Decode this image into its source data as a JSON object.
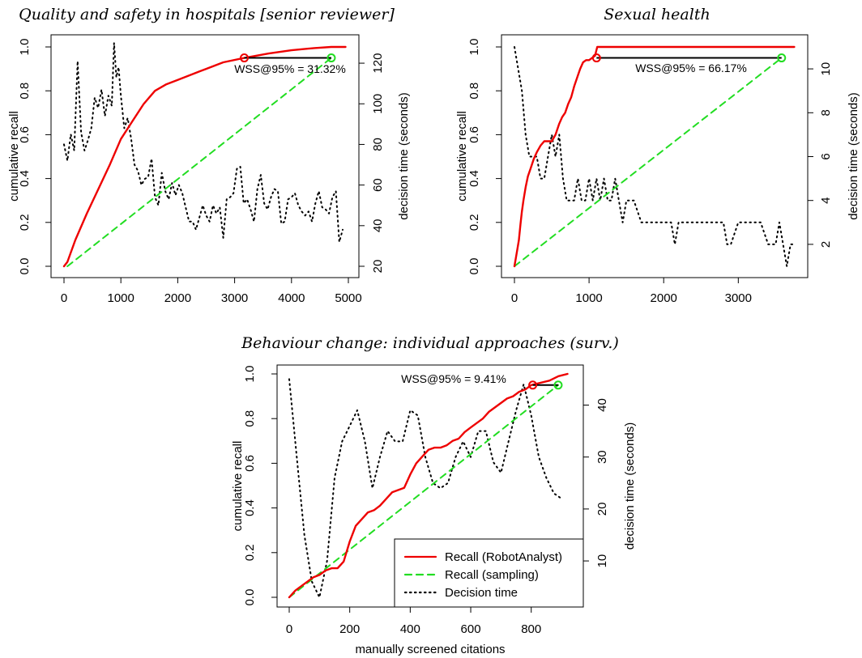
{
  "figure": {
    "legend": {
      "placement": "bottom-right of third panel",
      "entries": [
        {
          "label": "Recall (RobotAnalyst)",
          "color": "#ee0000",
          "style": "solid"
        },
        {
          "label": "Recall (sampling)",
          "color": "#22dd22",
          "style": "dashed"
        },
        {
          "label": "Decision time",
          "color": "#000000",
          "style": "dotted"
        }
      ]
    },
    "colors": {
      "recall_robot": "#ee0000",
      "recall_sampling": "#22dd22",
      "decision_time": "#000000",
      "wss_line": "#000000"
    }
  },
  "chart_data": [
    {
      "type": "line",
      "title": "Quality and safety in hospitals [senior reviewer]",
      "xlabel": "",
      "ylabel": "cumulative recall",
      "y2label": "decision time (seconds)",
      "xlim": [
        0,
        5000
      ],
      "ylim": [
        0,
        1
      ],
      "y2lim": [
        20,
        128
      ],
      "xticks": [
        "0",
        "1000",
        "2000",
        "3000",
        "4000",
        "5000"
      ],
      "yticks": [
        "0.0",
        "0.2",
        "0.4",
        "0.6",
        "0.8",
        "1.0"
      ],
      "y2ticks": [
        "20",
        "40",
        "60",
        "80",
        "100",
        "120"
      ],
      "annotation": "WSS@95% = 31.32%",
      "wss": {
        "robot_x": 3170,
        "sampling_x": 4700,
        "recall": 0.95
      },
      "series": [
        {
          "name": "Recall (RobotAnalyst)",
          "x": [
            0,
            60,
            200,
            400,
            600,
            800,
            1000,
            1200,
            1400,
            1600,
            1800,
            2000,
            2400,
            2800,
            3170,
            3600,
            4000,
            4400,
            4700,
            4950
          ],
          "y": [
            0,
            0.02,
            0.12,
            0.24,
            0.35,
            0.46,
            0.58,
            0.66,
            0.74,
            0.8,
            0.83,
            0.85,
            0.89,
            0.93,
            0.95,
            0.97,
            0.985,
            0.995,
            1.0,
            1.0
          ]
        },
        {
          "name": "Recall (sampling)",
          "x": [
            60,
            4700
          ],
          "y": [
            0,
            0.95
          ]
        },
        {
          "name": "Decision time",
          "axis": "y2",
          "x": [
            0,
            60,
            120,
            180,
            240,
            300,
            360,
            420,
            480,
            540,
            600,
            660,
            720,
            780,
            840,
            880,
            920,
            960,
            1000,
            1060,
            1120,
            1180,
            1240,
            1300,
            1360,
            1420,
            1480,
            1540,
            1600,
            1660,
            1720,
            1780,
            1840,
            1900,
            1960,
            2020,
            2080,
            2140,
            2200,
            2260,
            2320,
            2380,
            2440,
            2500,
            2560,
            2620,
            2680,
            2740,
            2800,
            2860,
            2920,
            2980,
            3040,
            3100,
            3160,
            3220,
            3280,
            3340,
            3400,
            3460,
            3520,
            3580,
            3640,
            3700,
            3760,
            3820,
            3880,
            3940,
            4000,
            4060,
            4120,
            4180,
            4240,
            4300,
            4360,
            4420,
            4480,
            4540,
            4600,
            4660,
            4720,
            4780,
            4840,
            4900
          ],
          "y": [
            80,
            72,
            85,
            77,
            121,
            86,
            77,
            82,
            88,
            103,
            98,
            107,
            94,
            104,
            99,
            130,
            113,
            118,
            104,
            88,
            93,
            83,
            70,
            67,
            60,
            63,
            64,
            73,
            54,
            50,
            66,
            57,
            53,
            61,
            55,
            60,
            56,
            49,
            42,
            42,
            38,
            44,
            50,
            45,
            42,
            50,
            46,
            49,
            34,
            53,
            54,
            56,
            68,
            69,
            51,
            53,
            48,
            42,
            58,
            65,
            51,
            48,
            54,
            58,
            57,
            41,
            42,
            53,
            54,
            56,
            50,
            47,
            45,
            47,
            42,
            51,
            57,
            49,
            48,
            46,
            54,
            57,
            32,
            38
          ]
        }
      ]
    },
    {
      "type": "line",
      "title": "Sexual health",
      "xlabel": "",
      "ylabel": "cumulative recall",
      "y2label": "decision time (seconds)",
      "xlim": [
        0,
        3800
      ],
      "ylim": [
        0,
        1
      ],
      "y2lim": [
        1,
        11
      ],
      "xticks": [
        "0",
        "1000",
        "2000",
        "3000"
      ],
      "yticks": [
        "0.0",
        "0.2",
        "0.4",
        "0.6",
        "0.8",
        "1.0"
      ],
      "y2ticks": [
        "2",
        "4",
        "6",
        "8",
        "10"
      ],
      "annotation": "WSS@95% = 66.17%",
      "wss": {
        "robot_x": 1100,
        "sampling_x": 3580,
        "recall": 0.95
      },
      "series": [
        {
          "name": "Recall (RobotAnalyst)",
          "x": [
            0,
            40,
            60,
            80,
            100,
            120,
            150,
            180,
            220,
            260,
            300,
            350,
            400,
            450,
            500,
            550,
            600,
            640,
            680,
            720,
            760,
            800,
            840,
            880,
            920,
            960,
            1000,
            1040,
            1080,
            1110,
            3750
          ],
          "y": [
            0,
            0.08,
            0.12,
            0.19,
            0.25,
            0.3,
            0.36,
            0.41,
            0.45,
            0.49,
            0.52,
            0.55,
            0.57,
            0.57,
            0.57,
            0.6,
            0.65,
            0.68,
            0.7,
            0.74,
            0.77,
            0.82,
            0.86,
            0.9,
            0.93,
            0.94,
            0.94,
            0.95,
            0.96,
            1.0,
            1.0
          ]
        },
        {
          "name": "Recall (sampling)",
          "x": [
            0,
            3580
          ],
          "y": [
            0,
            0.95
          ]
        },
        {
          "name": "Decision time",
          "axis": "y2",
          "x": [
            0,
            50,
            100,
            150,
            200,
            250,
            300,
            350,
            400,
            450,
            500,
            550,
            600,
            650,
            700,
            750,
            800,
            850,
            900,
            950,
            1000,
            1050,
            1100,
            1150,
            1200,
            1250,
            1300,
            1350,
            1400,
            1450,
            1500,
            1600,
            1700,
            1800,
            1900,
            2000,
            2100,
            2150,
            2200,
            2300,
            2400,
            2500,
            2600,
            2700,
            2800,
            2850,
            2900,
            3000,
            3050,
            3100,
            3200,
            3300,
            3400,
            3450,
            3500,
            3550,
            3600,
            3650,
            3700,
            3750
          ],
          "y": [
            11,
            10,
            9,
            7,
            6,
            6,
            6,
            5,
            5,
            6,
            7,
            6,
            7,
            5,
            4,
            4,
            4,
            5,
            4,
            4,
            5,
            4,
            5,
            4,
            5,
            4,
            4,
            5,
            4,
            3,
            4,
            4,
            3,
            3,
            3,
            3,
            3,
            2,
            3,
            3,
            3,
            3,
            3,
            3,
            3,
            2,
            2,
            3,
            3,
            3,
            3,
            3,
            2,
            2,
            2,
            3,
            2,
            1,
            2,
            2
          ]
        }
      ]
    },
    {
      "type": "line",
      "title": "Behaviour change: individual approaches (surv.)",
      "xlabel": "manually screened citations",
      "ylabel": "cumulative recall",
      "y2label": "decision time (seconds)",
      "xlim": [
        0,
        940
      ],
      "ylim": [
        0,
        1
      ],
      "y2lim": [
        3,
        46
      ],
      "xticks": [
        "0",
        "200",
        "400",
        "600",
        "800"
      ],
      "yticks": [
        "0.0",
        "0.2",
        "0.4",
        "0.6",
        "0.8",
        "1.0"
      ],
      "y2ticks": [
        "10",
        "20",
        "30",
        "40"
      ],
      "annotation": "WSS@95% = 9.41%",
      "wss": {
        "robot_x": 805,
        "sampling_x": 889,
        "recall": 0.95
      },
      "series": [
        {
          "name": "Recall (RobotAnalyst)",
          "x": [
            0,
            20,
            40,
            60,
            80,
            100,
            120,
            140,
            160,
            180,
            200,
            220,
            240,
            260,
            280,
            300,
            320,
            340,
            360,
            380,
            400,
            420,
            440,
            460,
            480,
            500,
            520,
            540,
            560,
            580,
            600,
            620,
            640,
            660,
            680,
            700,
            720,
            740,
            760,
            780,
            800,
            830,
            860,
            890,
            920
          ],
          "y": [
            0,
            0.03,
            0.05,
            0.07,
            0.09,
            0.1,
            0.12,
            0.13,
            0.13,
            0.16,
            0.25,
            0.32,
            0.35,
            0.38,
            0.39,
            0.41,
            0.44,
            0.47,
            0.48,
            0.49,
            0.55,
            0.6,
            0.63,
            0.66,
            0.67,
            0.67,
            0.68,
            0.7,
            0.71,
            0.74,
            0.76,
            0.78,
            0.8,
            0.83,
            0.85,
            0.87,
            0.89,
            0.9,
            0.92,
            0.93,
            0.95,
            0.96,
            0.97,
            0.99,
            1.0
          ]
        },
        {
          "name": "Recall (sampling)",
          "x": [
            0,
            889
          ],
          "y": [
            0,
            0.95
          ]
        },
        {
          "name": "Decision time",
          "axis": "y2",
          "x": [
            0,
            25,
            50,
            75,
            100,
            125,
            150,
            175,
            200,
            225,
            250,
            275,
            300,
            325,
            350,
            375,
            400,
            425,
            450,
            475,
            500,
            525,
            550,
            575,
            600,
            625,
            650,
            675,
            700,
            725,
            750,
            775,
            800,
            825,
            850,
            875,
            900
          ],
          "y": [
            45,
            30,
            15,
            6,
            3,
            10,
            26,
            33,
            36,
            39,
            33,
            24,
            30,
            35,
            33,
            33,
            39,
            38,
            30,
            25,
            24,
            25,
            30,
            33,
            30,
            35,
            35,
            29,
            27,
            33,
            39,
            44,
            38,
            30,
            26,
            23,
            22
          ]
        }
      ]
    }
  ]
}
